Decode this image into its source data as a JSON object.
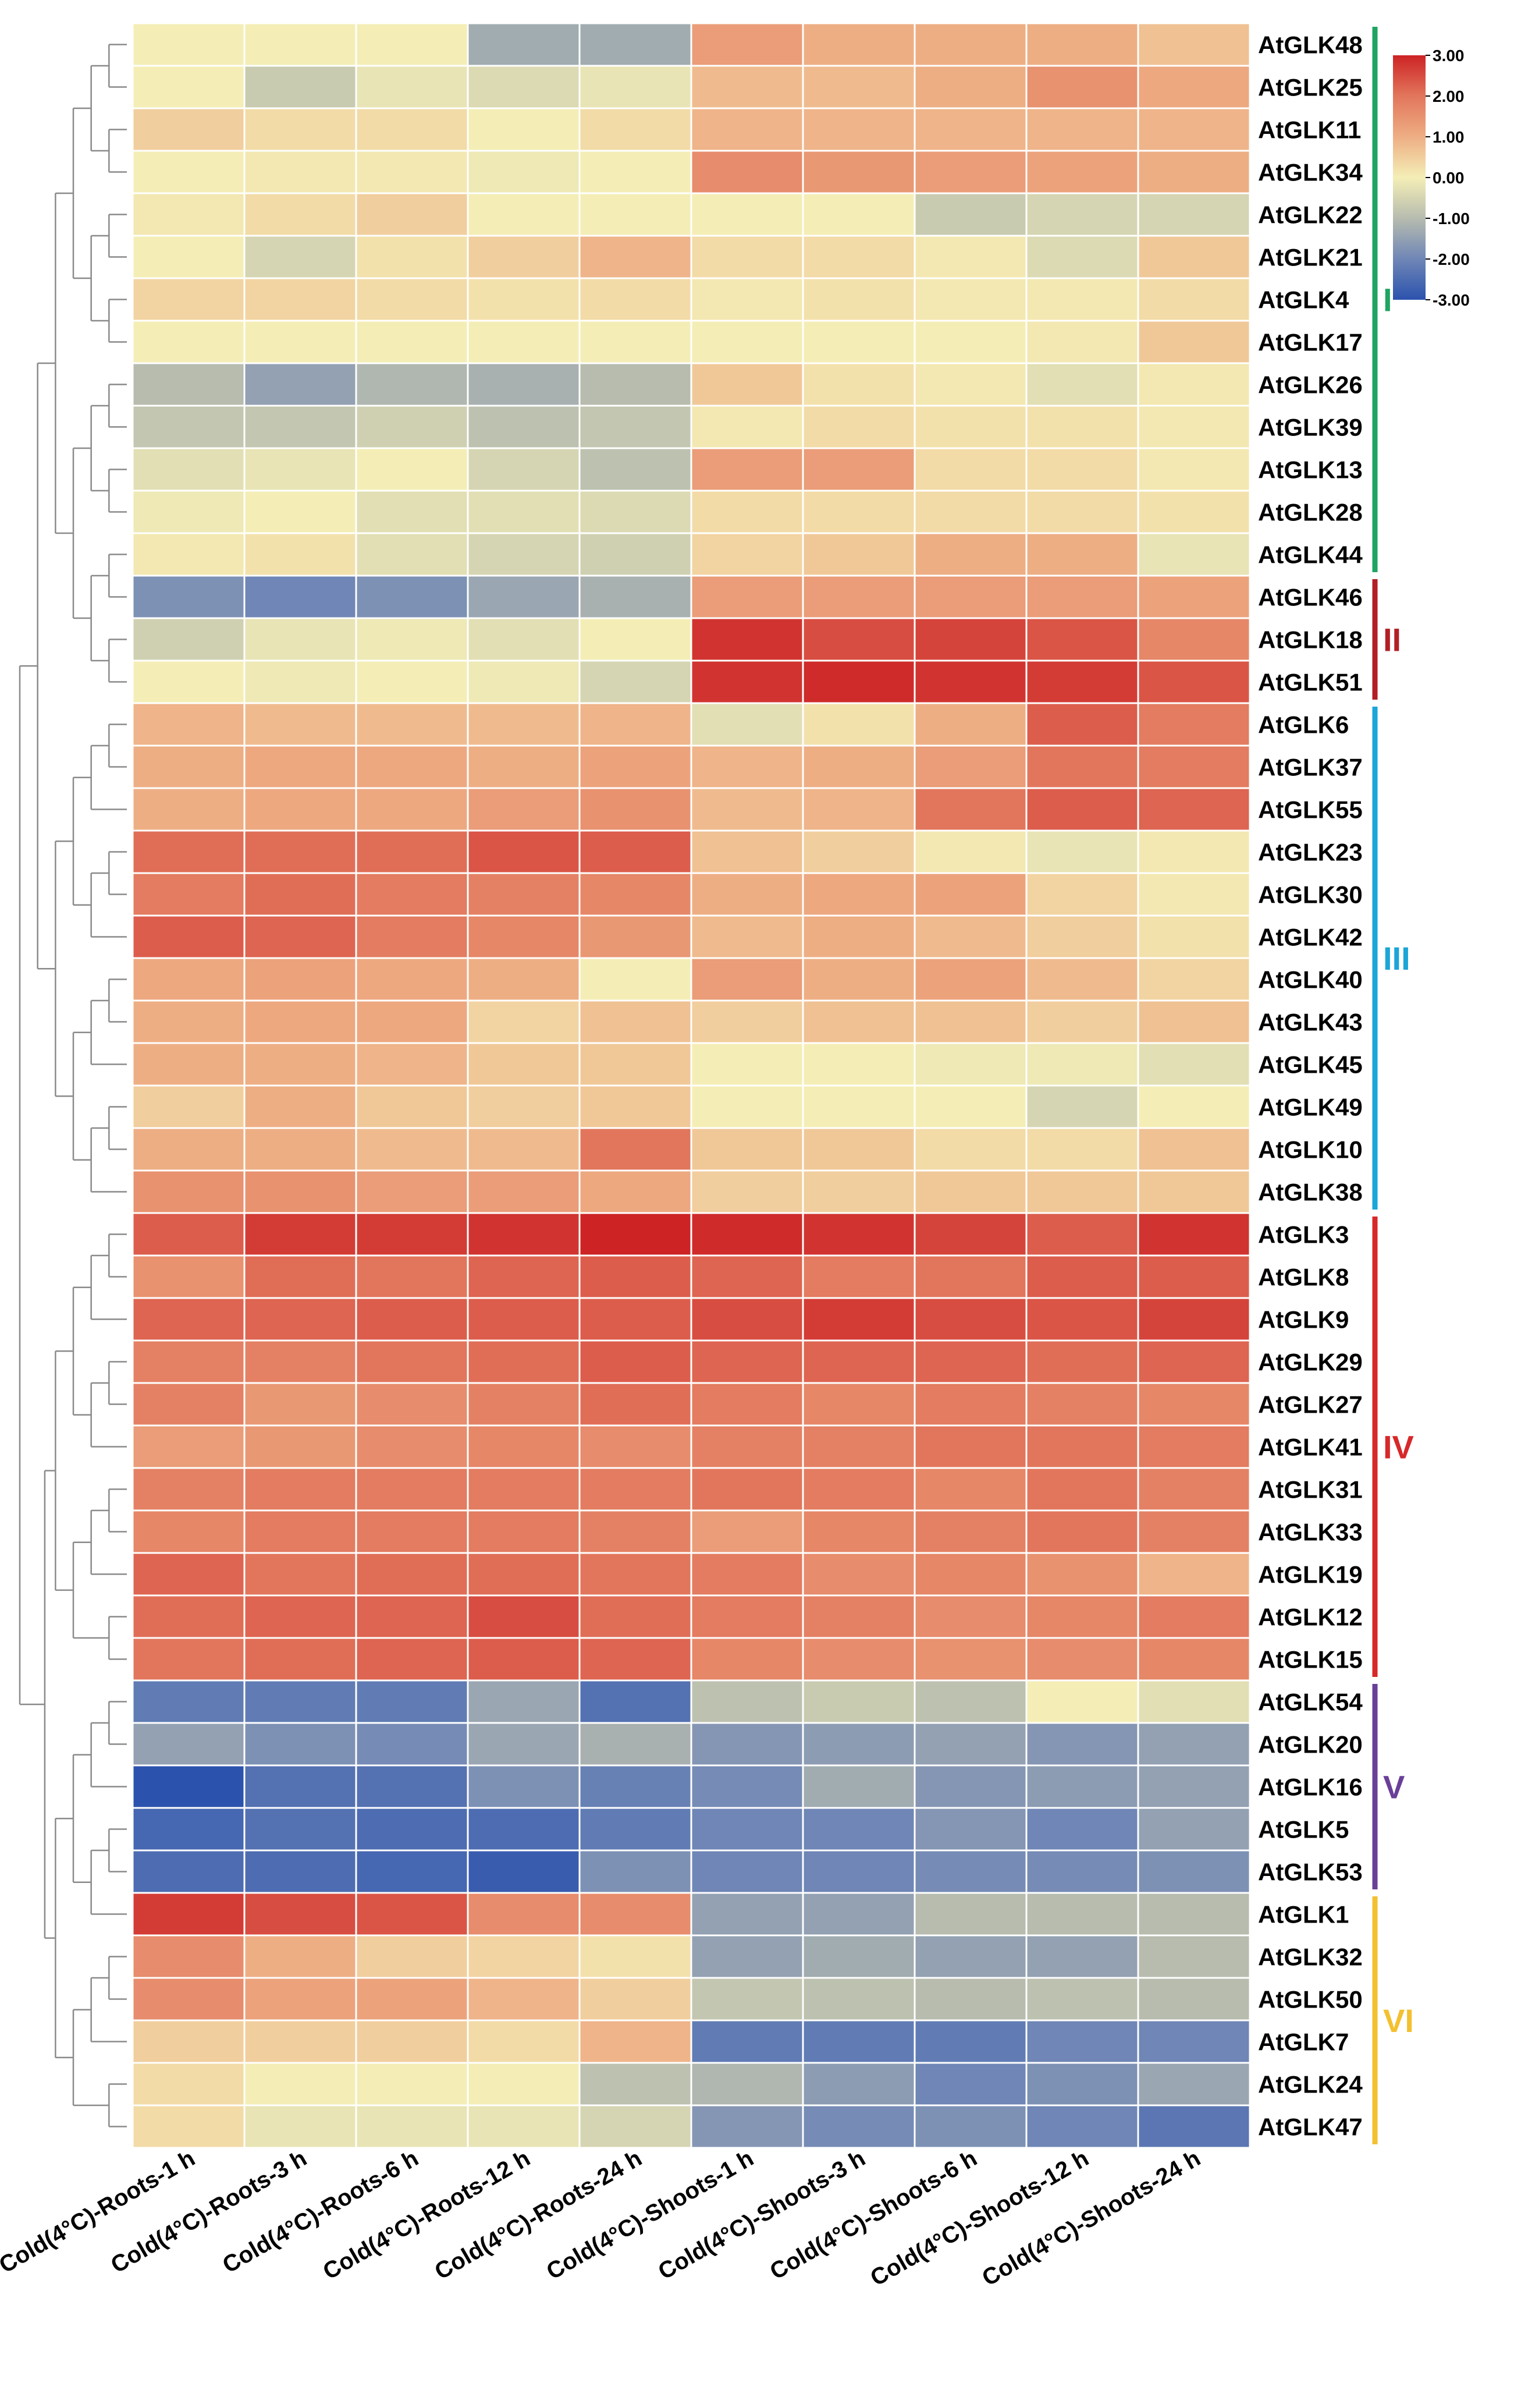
{
  "chart_data": {
    "type": "heatmap",
    "title": "",
    "columns": [
      "Cold(4°C)-Roots-1 h",
      "Cold(4°C)-Roots-3 h",
      "Cold(4°C)-Roots-6 h",
      "Cold(4°C)-Roots-12 h",
      "Cold(4°C)-Roots-24 h",
      "Cold(4°C)-Shoots-1 h",
      "Cold(4°C)-Shoots-3 h",
      "Cold(4°C)-Shoots-6 h",
      "Cold(4°C)-Shoots-12 h",
      "Cold(4°C)-Shoots-24 h"
    ],
    "rows": [
      "AtGLK48",
      "AtGLK25",
      "AtGLK11",
      "AtGLK34",
      "AtGLK22",
      "AtGLK21",
      "AtGLK4",
      "AtGLK17",
      "AtGLK26",
      "AtGLK39",
      "AtGLK13",
      "AtGLK28",
      "AtGLK44",
      "AtGLK46",
      "AtGLK18",
      "AtGLK51",
      "AtGLK6",
      "AtGLK37",
      "AtGLK55",
      "AtGLK23",
      "AtGLK30",
      "AtGLK42",
      "AtGLK40",
      "AtGLK43",
      "AtGLK45",
      "AtGLK49",
      "AtGLK10",
      "AtGLK38",
      "AtGLK3",
      "AtGLK8",
      "AtGLK9",
      "AtGLK29",
      "AtGLK27",
      "AtGLK41",
      "AtGLK31",
      "AtGLK33",
      "AtGLK19",
      "AtGLK12",
      "AtGLK15",
      "AtGLK54",
      "AtGLK20",
      "AtGLK16",
      "AtGLK5",
      "AtGLK53",
      "AtGLK1",
      "AtGLK32",
      "AtGLK50",
      "AtGLK7",
      "AtGLK24",
      "AtGLK47"
    ],
    "values": [
      [
        0.0,
        0.0,
        0.0,
        -1.3,
        -1.3,
        1.3,
        1.0,
        1.0,
        1.0,
        0.7
      ],
      [
        0.0,
        -0.7,
        -0.2,
        -0.4,
        -0.2,
        0.8,
        0.8,
        1.0,
        1.5,
        1.1
      ],
      [
        0.5,
        0.3,
        0.3,
        0.0,
        0.3,
        0.9,
        0.9,
        0.9,
        0.9,
        0.9
      ],
      [
        0.0,
        0.1,
        0.1,
        -0.1,
        0.0,
        1.6,
        1.4,
        1.3,
        1.2,
        1.0
      ],
      [
        0.1,
        0.3,
        0.5,
        0.0,
        0.0,
        0.0,
        0.0,
        -0.7,
        -0.5,
        -0.5
      ],
      [
        0.0,
        -0.5,
        0.2,
        0.5,
        0.9,
        0.3,
        0.3,
        0.1,
        -0.4,
        0.6
      ],
      [
        0.4,
        0.4,
        0.3,
        0.2,
        0.3,
        0.1,
        0.2,
        0.1,
        0.1,
        0.3
      ],
      [
        0.0,
        0.0,
        0.0,
        0.0,
        0.0,
        0.0,
        0.0,
        0.0,
        0.1,
        0.6
      ],
      [
        -1.0,
        -1.5,
        -1.1,
        -1.2,
        -1.0,
        0.6,
        0.2,
        0.1,
        -0.3,
        0.1
      ],
      [
        -0.8,
        -0.8,
        -0.6,
        -0.9,
        -0.8,
        0.1,
        0.3,
        0.2,
        0.2,
        0.1
      ],
      [
        -0.3,
        -0.2,
        0.0,
        -0.5,
        -0.9,
        1.3,
        1.3,
        0.3,
        0.3,
        0.1
      ],
      [
        -0.1,
        0.0,
        -0.3,
        -0.3,
        -0.4,
        0.3,
        0.3,
        0.3,
        0.3,
        0.2
      ],
      [
        0.1,
        0.2,
        -0.3,
        -0.5,
        -0.6,
        0.4,
        0.6,
        1.0,
        1.0,
        -0.2
      ],
      [
        -1.8,
        -2.0,
        -1.8,
        -1.4,
        -1.2,
        1.3,
        1.3,
        1.3,
        1.3,
        1.2
      ],
      [
        -0.6,
        -0.2,
        -0.1,
        -0.3,
        0.0,
        2.8,
        2.5,
        2.6,
        2.4,
        1.7
      ],
      [
        0.0,
        -0.1,
        0.0,
        -0.1,
        -0.5,
        2.8,
        2.9,
        2.8,
        2.7,
        2.4
      ],
      [
        0.9,
        0.8,
        0.8,
        0.8,
        0.9,
        -0.3,
        0.2,
        1.0,
        2.3,
        1.9
      ],
      [
        1.0,
        1.1,
        1.1,
        1.0,
        1.2,
        0.9,
        1.0,
        1.3,
        2.0,
        1.9
      ],
      [
        1.0,
        1.1,
        1.1,
        1.3,
        1.5,
        0.8,
        0.9,
        2.0,
        2.3,
        2.2
      ],
      [
        2.1,
        2.1,
        2.1,
        2.4,
        2.3,
        0.7,
        0.5,
        0.1,
        -0.2,
        0.1
      ],
      [
        1.9,
        2.1,
        1.9,
        1.8,
        1.7,
        1.0,
        1.1,
        1.2,
        0.4,
        0.1
      ],
      [
        2.3,
        2.2,
        1.9,
        1.7,
        1.4,
        0.8,
        1.0,
        0.8,
        0.5,
        0.2
      ],
      [
        1.1,
        1.2,
        1.1,
        1.0,
        0.0,
        1.3,
        1.0,
        1.2,
        0.8,
        0.4
      ],
      [
        1.0,
        1.1,
        1.1,
        0.4,
        0.7,
        0.5,
        0.7,
        0.7,
        0.5,
        0.7
      ],
      [
        1.0,
        1.0,
        0.9,
        0.6,
        0.6,
        0.0,
        0.0,
        -0.1,
        -0.1,
        -0.3
      ],
      [
        0.5,
        1.0,
        0.6,
        0.5,
        0.6,
        0.0,
        0.0,
        0.0,
        -0.5,
        0.0
      ],
      [
        1.0,
        1.0,
        0.8,
        0.8,
        2.0,
        0.6,
        0.6,
        0.3,
        0.3,
        0.7
      ],
      [
        1.5,
        1.5,
        1.3,
        1.3,
        1.1,
        0.5,
        0.5,
        0.6,
        0.6,
        0.6
      ],
      [
        2.3,
        2.7,
        2.7,
        2.8,
        3.0,
        2.9,
        2.8,
        2.6,
        2.3,
        2.8
      ],
      [
        1.5,
        2.1,
        2.0,
        2.2,
        2.3,
        2.2,
        1.9,
        2.0,
        2.3,
        2.3
      ],
      [
        2.2,
        2.2,
        2.3,
        2.3,
        2.3,
        2.5,
        2.7,
        2.5,
        2.4,
        2.6
      ],
      [
        1.8,
        1.8,
        2.0,
        2.1,
        2.3,
        2.2,
        2.2,
        2.2,
        2.1,
        2.2
      ],
      [
        1.8,
        1.4,
        1.6,
        1.8,
        2.1,
        1.9,
        1.7,
        1.9,
        1.8,
        1.7
      ],
      [
        1.3,
        1.4,
        1.6,
        1.7,
        1.6,
        1.8,
        1.8,
        2.0,
        2.0,
        1.9
      ],
      [
        1.8,
        1.9,
        1.9,
        1.9,
        1.9,
        2.0,
        1.9,
        1.7,
        2.0,
        1.8
      ],
      [
        1.7,
        1.9,
        1.9,
        1.9,
        1.8,
        1.3,
        1.7,
        1.8,
        2.0,
        1.8
      ],
      [
        2.2,
        2.0,
        2.1,
        2.1,
        2.0,
        1.9,
        1.6,
        1.7,
        1.5,
        0.9
      ],
      [
        2.1,
        2.2,
        2.2,
        2.5,
        2.1,
        1.9,
        1.8,
        1.6,
        1.7,
        1.9
      ],
      [
        2.0,
        2.1,
        2.2,
        2.3,
        2.2,
        1.7,
        1.6,
        1.5,
        1.6,
        1.7
      ],
      [
        -2.2,
        -2.2,
        -2.2,
        -1.4,
        -2.4,
        -0.9,
        -0.7,
        -0.9,
        0.0,
        -0.3
      ],
      [
        -1.5,
        -1.8,
        -1.9,
        -1.4,
        -1.2,
        -1.7,
        -1.6,
        -1.5,
        -1.7,
        -1.5
      ],
      [
        -3.0,
        -2.4,
        -2.4,
        -1.8,
        -2.1,
        -1.9,
        -1.3,
        -1.7,
        -1.6,
        -1.5
      ],
      [
        -2.6,
        -2.4,
        -2.5,
        -2.5,
        -2.2,
        -2.0,
        -2.0,
        -1.7,
        -2.0,
        -1.5
      ],
      [
        -2.5,
        -2.5,
        -2.6,
        -2.8,
        -1.8,
        -2.0,
        -2.0,
        -1.9,
        -1.9,
        -1.8
      ],
      [
        2.7,
        2.5,
        2.4,
        1.6,
        1.6,
        -1.5,
        -1.5,
        -1.0,
        -1.0,
        -1.0
      ],
      [
        1.6,
        1.0,
        0.5,
        0.4,
        0.2,
        -1.5,
        -1.3,
        -1.5,
        -1.5,
        -1.0
      ],
      [
        1.6,
        1.2,
        1.2,
        0.9,
        0.5,
        -0.8,
        -0.9,
        -1.0,
        -0.9,
        -1.0
      ],
      [
        0.5,
        0.5,
        0.5,
        0.3,
        0.9,
        -2.2,
        -2.2,
        -2.2,
        -2.0,
        -2.0
      ],
      [
        0.3,
        0.0,
        0.0,
        0.0,
        -0.9,
        -1.1,
        -1.6,
        -2.0,
        -1.8,
        -1.4
      ],
      [
        0.3,
        -0.2,
        -0.2,
        -0.2,
        -0.5,
        -1.7,
        -1.9,
        -1.8,
        -2.0,
        -2.3
      ]
    ],
    "color_scale": {
      "min": -3.0,
      "max": 3.0,
      "tick_labels": [
        "3.00",
        "2.00",
        "1.00",
        "0.00",
        "-1.00",
        "-2.00",
        "-3.00"
      ],
      "tick_values": [
        3,
        2,
        1,
        0,
        -1,
        -2,
        -3
      ],
      "stops": [
        {
          "value": -3,
          "color": "#2b52ad"
        },
        {
          "value": -2,
          "color": "#6f86b6"
        },
        {
          "value": -1,
          "color": "#b7bcaf"
        },
        {
          "value": 0,
          "color": "#f4eeb6"
        },
        {
          "value": 1,
          "color": "#eeae84"
        },
        {
          "value": 2,
          "color": "#e2765c"
        },
        {
          "value": 3,
          "color": "#cd2325"
        }
      ]
    },
    "clusters": [
      {
        "label": "I",
        "color": "#1fa461",
        "rows": [
          "AtGLK48",
          "AtGLK44"
        ]
      },
      {
        "label": "II",
        "color": "#b21f24",
        "rows": [
          "AtGLK46",
          "AtGLK51"
        ]
      },
      {
        "label": "III",
        "color": "#1ba5d8",
        "rows": [
          "AtGLK6",
          "AtGLK38"
        ]
      },
      {
        "label": "IV",
        "color": "#d7282a",
        "rows": [
          "AtGLK3",
          "AtGLK15"
        ]
      },
      {
        "label": "V",
        "color": "#6a3f98",
        "rows": [
          "AtGLK54",
          "AtGLK53"
        ]
      },
      {
        "label": "VI",
        "color": "#f3c02f",
        "rows": [
          "AtGLK1",
          "AtGLK47"
        ]
      }
    ],
    "dendrogram": {
      "groups": [
        [
          "AtGLK48",
          "AtGLK25",
          "AtGLK11",
          "AtGLK34",
          "AtGLK22",
          "AtGLK21",
          "AtGLK4",
          "AtGLK17",
          "AtGLK26",
          "AtGLK39",
          "AtGLK13",
          "AtGLK28",
          "AtGLK44",
          "AtGLK46",
          "AtGLK18",
          "AtGLK51"
        ],
        [
          "AtGLK6",
          "AtGLK37",
          "AtGLK55",
          "AtGLK23",
          "AtGLK30",
          "AtGLK42",
          "AtGLK40",
          "AtGLK43",
          "AtGLK45",
          "AtGLK49",
          "AtGLK10",
          "AtGLK38"
        ],
        [
          "AtGLK3",
          "AtGLK8",
          "AtGLK9",
          "AtGLK29",
          "AtGLK27",
          "AtGLK41",
          "AtGLK31",
          "AtGLK33",
          "AtGLK19",
          "AtGLK12",
          "AtGLK15"
        ],
        [
          "AtGLK54",
          "AtGLK20",
          "AtGLK16",
          "AtGLK5",
          "AtGLK53",
          "AtGLK1",
          "AtGLK32",
          "AtGLK50",
          "AtGLK7",
          "AtGLK24",
          "AtGLK47"
        ]
      ]
    }
  }
}
